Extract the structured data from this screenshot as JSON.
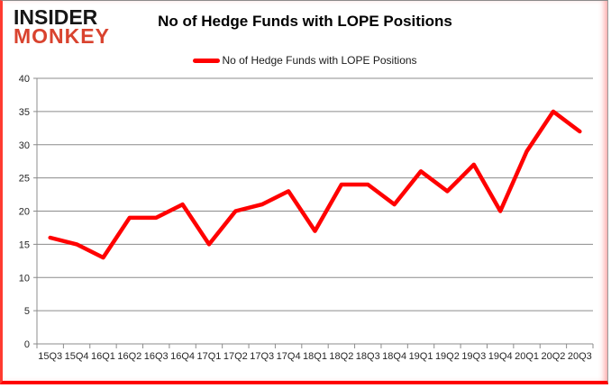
{
  "logo": {
    "line1": "INSIDER",
    "line2": "MONKEY"
  },
  "title": "No of Hedge Funds with LOPE Positions",
  "legend": {
    "label": "No of Hedge Funds with LOPE Positions"
  },
  "colors": {
    "line": "#ff0000",
    "grid": "#8c8c8c",
    "axis_text": "#262626",
    "logo_black": "#161616",
    "logo_red": "#d9432f",
    "frame_red": "#ff0000"
  },
  "chart_data": {
    "type": "line",
    "title": "No of Hedge Funds with LOPE Positions",
    "categories": [
      "15Q3",
      "15Q4",
      "16Q1",
      "16Q2",
      "16Q3",
      "16Q4",
      "17Q1",
      "17Q2",
      "17Q3",
      "17Q4",
      "18Q1",
      "18Q2",
      "18Q3",
      "18Q4",
      "19Q1",
      "19Q2",
      "19Q3",
      "19Q4",
      "20Q1",
      "20Q2",
      "20Q3"
    ],
    "series": [
      {
        "name": "No of Hedge Funds with LOPE Positions",
        "values": [
          16,
          15,
          13,
          19,
          19,
          21,
          15,
          20,
          21,
          23,
          17,
          24,
          24,
          21,
          26,
          23,
          27,
          20,
          29,
          35,
          32
        ]
      }
    ],
    "xlabel": "",
    "ylabel": "",
    "ylim": [
      0,
      40
    ],
    "ytick_interval": 5,
    "grid": true,
    "legend_position": "top-center",
    "line_color": "#ff0000"
  }
}
